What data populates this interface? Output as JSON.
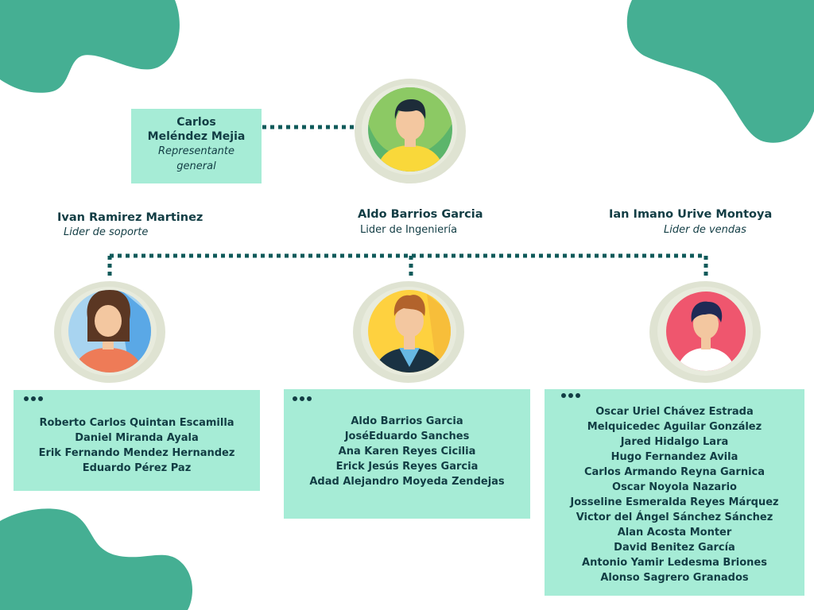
{
  "colors": {
    "blob": "#45af93",
    "box": "#a6ecd6",
    "text": "#123d44",
    "connector": "#0f5a5a",
    "avatar_frame": "#dfe3d2"
  },
  "representative": {
    "name_line1": "Carlos",
    "name_line2": "Meléndez Mejia",
    "role_line1": "Representante",
    "role_line2": "general",
    "avatar_icon": "man-avatar-icon"
  },
  "leaders": [
    {
      "name": "Ivan Ramirez Martinez",
      "role": "Lider de soporte",
      "avatar_icon": "bearded-man-avatar-icon"
    },
    {
      "name": "Aldo Barrios Garcia",
      "role": "Lider de Ingeniería",
      "avatar_icon": "man-avatar-icon"
    },
    {
      "name": "Ian Imano Urive Montoya",
      "role": "Lider de vendas",
      "avatar_icon": "woman-avatar-icon"
    }
  ],
  "teams": [
    {
      "members": [
        "Roberto Carlos Quintan Escamilla",
        "Daniel Miranda Ayala",
        "Erik Fernando Mendez Hernandez",
        "Eduardo Pérez Paz"
      ]
    },
    {
      "members": [
        "Aldo Barrios Garcia",
        "JoséEduardo Sanches",
        "Ana Karen Reyes Cicilia",
        "Erick Jesús Reyes Garcia",
        "Adad Alejandro Moyeda Zendejas"
      ]
    },
    {
      "members": [
        "Oscar Uriel Chávez Estrada",
        "Melquicedec Aguilar González",
        "Jared Hidalgo Lara",
        "Hugo Fernandez Avila",
        "Carlos Armando Reyna Garnica",
        "Oscar Noyola Nazario",
        "Josseline Esmeralda Reyes Márquez",
        "Victor del Ángel Sánchez Sánchez",
        "Alan Acosta Monter",
        "David Benitez García",
        "Antonio Yamir Ledesma Briones",
        "Alonso Sagrero  Granados"
      ]
    }
  ]
}
